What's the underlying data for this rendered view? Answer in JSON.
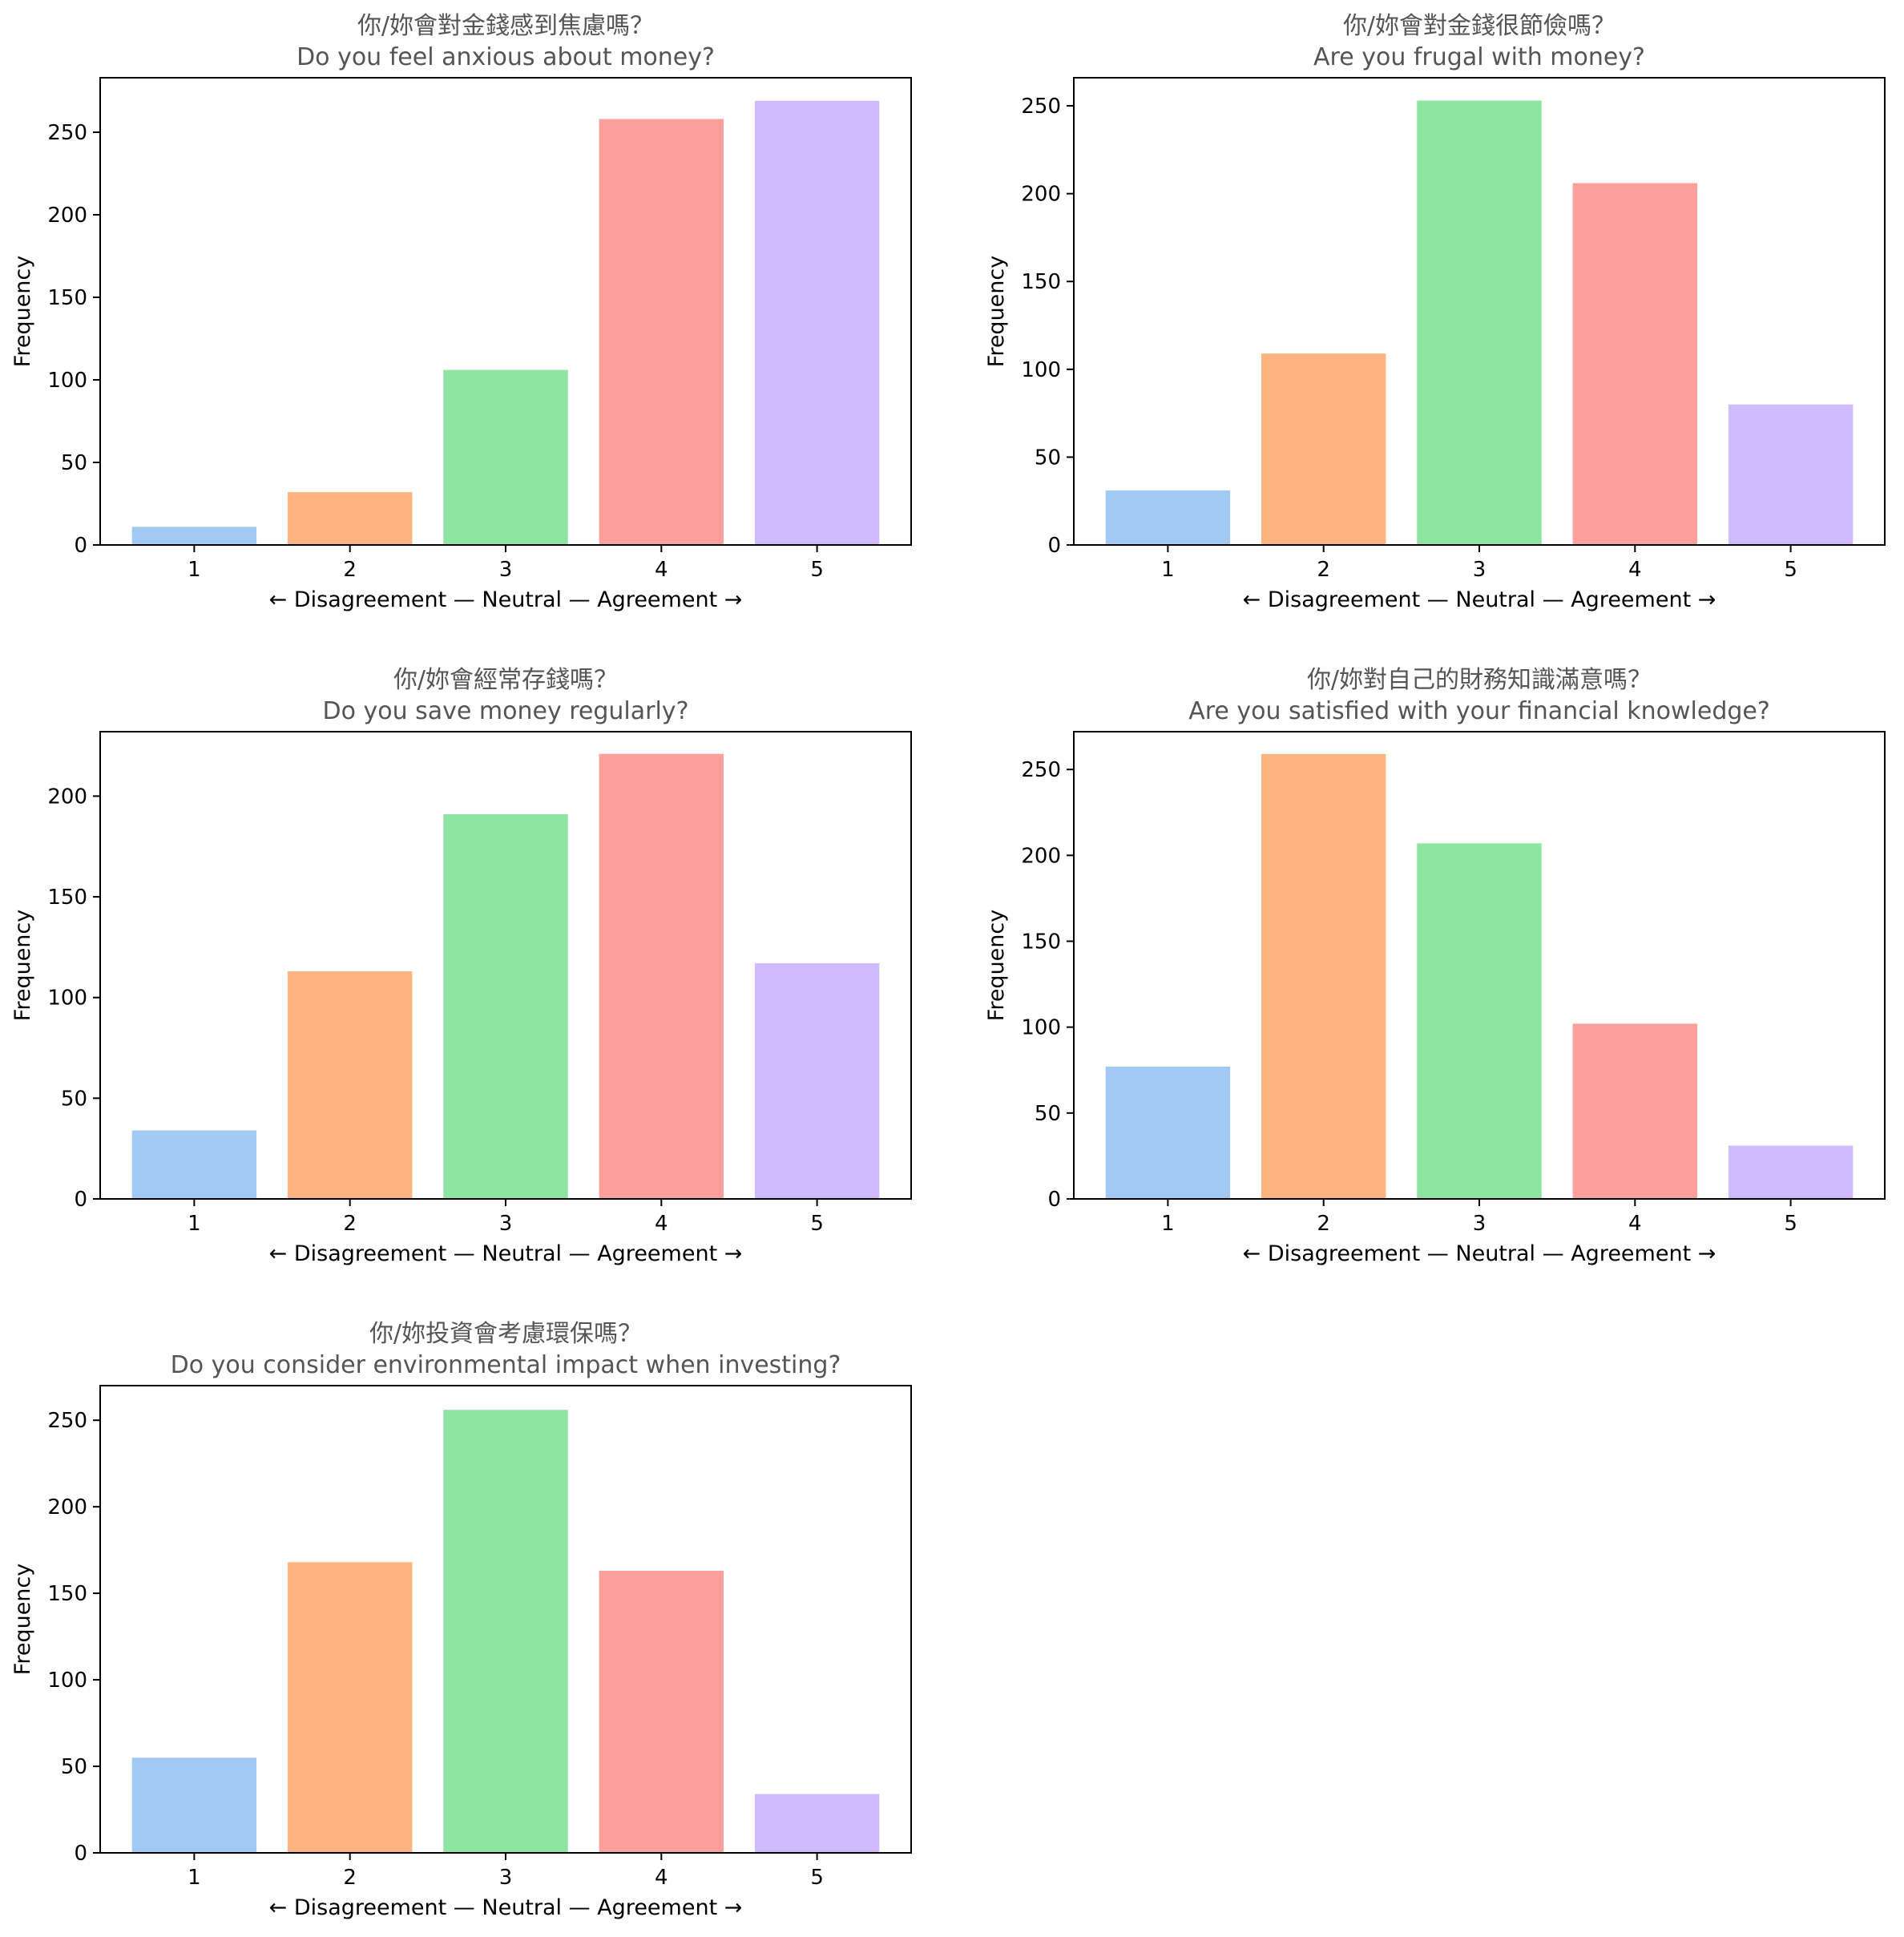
{
  "colors": [
    "#a1c9f4",
    "#ffb482",
    "#8de5a1",
    "#ff9f9b",
    "#d0bbff"
  ],
  "chart_data": [
    {
      "type": "bar",
      "title": "你/妳會對金錢感到焦慮嗎？",
      "subtitle": "Do you feel anxious about money?",
      "xlabel": "← Disagreement — Neutral — Agreement →",
      "ylabel": "Frequency",
      "categories": [
        "1",
        "2",
        "3",
        "4",
        "5"
      ],
      "values": [
        11,
        32,
        106,
        258,
        269
      ],
      "ylim": [
        0,
        283
      ],
      "yticks": [
        0,
        50,
        100,
        150,
        200,
        250
      ],
      "grid": false
    },
    {
      "type": "bar",
      "title": "你/妳會對金錢很節儉嗎？",
      "subtitle": "Are you frugal with money?",
      "xlabel": "← Disagreement — Neutral — Agreement →",
      "ylabel": "Frequency",
      "categories": [
        "1",
        "2",
        "3",
        "4",
        "5"
      ],
      "values": [
        31,
        109,
        253,
        206,
        80
      ],
      "ylim": [
        0,
        266
      ],
      "yticks": [
        0,
        50,
        100,
        150,
        200,
        250
      ],
      "grid": false
    },
    {
      "type": "bar",
      "title": "你/妳會經常存錢嗎？",
      "subtitle": "Do you save money regularly?",
      "xlabel": "← Disagreement — Neutral — Agreement →",
      "ylabel": "Frequency",
      "categories": [
        "1",
        "2",
        "3",
        "4",
        "5"
      ],
      "values": [
        34,
        113,
        191,
        221,
        117
      ],
      "ylim": [
        0,
        232
      ],
      "yticks": [
        0,
        50,
        100,
        150,
        200
      ],
      "grid": false
    },
    {
      "type": "bar",
      "title": "你/妳對自己的財務知識滿意嗎？",
      "subtitle": "Are you satisfied with your financial knowledge?",
      "xlabel": "← Disagreement — Neutral — Agreement →",
      "ylabel": "Frequency",
      "categories": [
        "1",
        "2",
        "3",
        "4",
        "5"
      ],
      "values": [
        77,
        259,
        207,
        102,
        31
      ],
      "ylim": [
        0,
        272
      ],
      "yticks": [
        0,
        50,
        100,
        150,
        200,
        250
      ],
      "grid": false
    },
    {
      "type": "bar",
      "title": "你/妳投資會考慮環保嗎？",
      "subtitle": "Do you consider environmental impact when investing?",
      "xlabel": "← Disagreement — Neutral — Agreement →",
      "ylabel": "Frequency",
      "categories": [
        "1",
        "2",
        "3",
        "4",
        "5"
      ],
      "values": [
        55,
        168,
        256,
        163,
        34
      ],
      "ylim": [
        0,
        270
      ],
      "yticks": [
        0,
        50,
        100,
        150,
        200,
        250
      ],
      "grid": false
    }
  ]
}
